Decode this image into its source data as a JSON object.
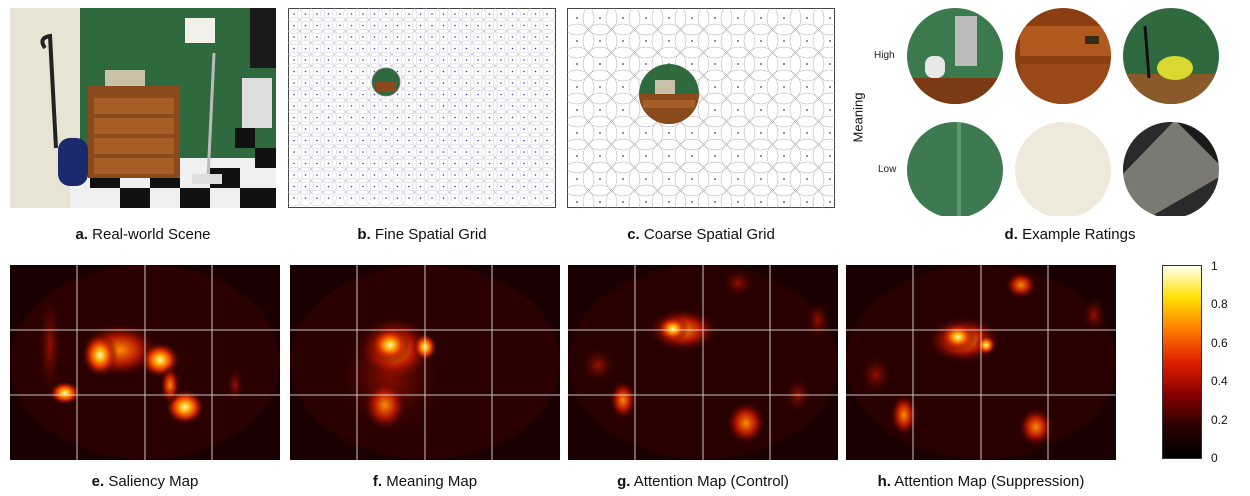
{
  "top": {
    "a": {
      "letter": "a.",
      "label": "Real-world Scene"
    },
    "b": {
      "letter": "b.",
      "label": "Fine Spatial Grid"
    },
    "c": {
      "letter": "c.",
      "label": "Coarse Spatial Grid"
    },
    "d": {
      "letter": "d.",
      "label": "Example Ratings"
    }
  },
  "ratings": {
    "axis_label": "Meaning",
    "high": "High",
    "low": "Low"
  },
  "bottom": {
    "e": {
      "letter": "e.",
      "label": "Saliency Map"
    },
    "f": {
      "letter": "f.",
      "label": "Meaning Map"
    },
    "g": {
      "letter": "g.",
      "label": "Attention Map (Control)"
    },
    "h": {
      "letter": "h.",
      "label": "Attention Map (Suppression)"
    }
  },
  "colorbar": {
    "ticks": [
      "1",
      "0.8",
      "0.6",
      "0.4",
      "0.2",
      "0"
    ],
    "colors": [
      "#fffff0",
      "#ffe000",
      "#ff7a00",
      "#e02000",
      "#8a0000",
      "#2a0000",
      "#000000"
    ]
  }
}
